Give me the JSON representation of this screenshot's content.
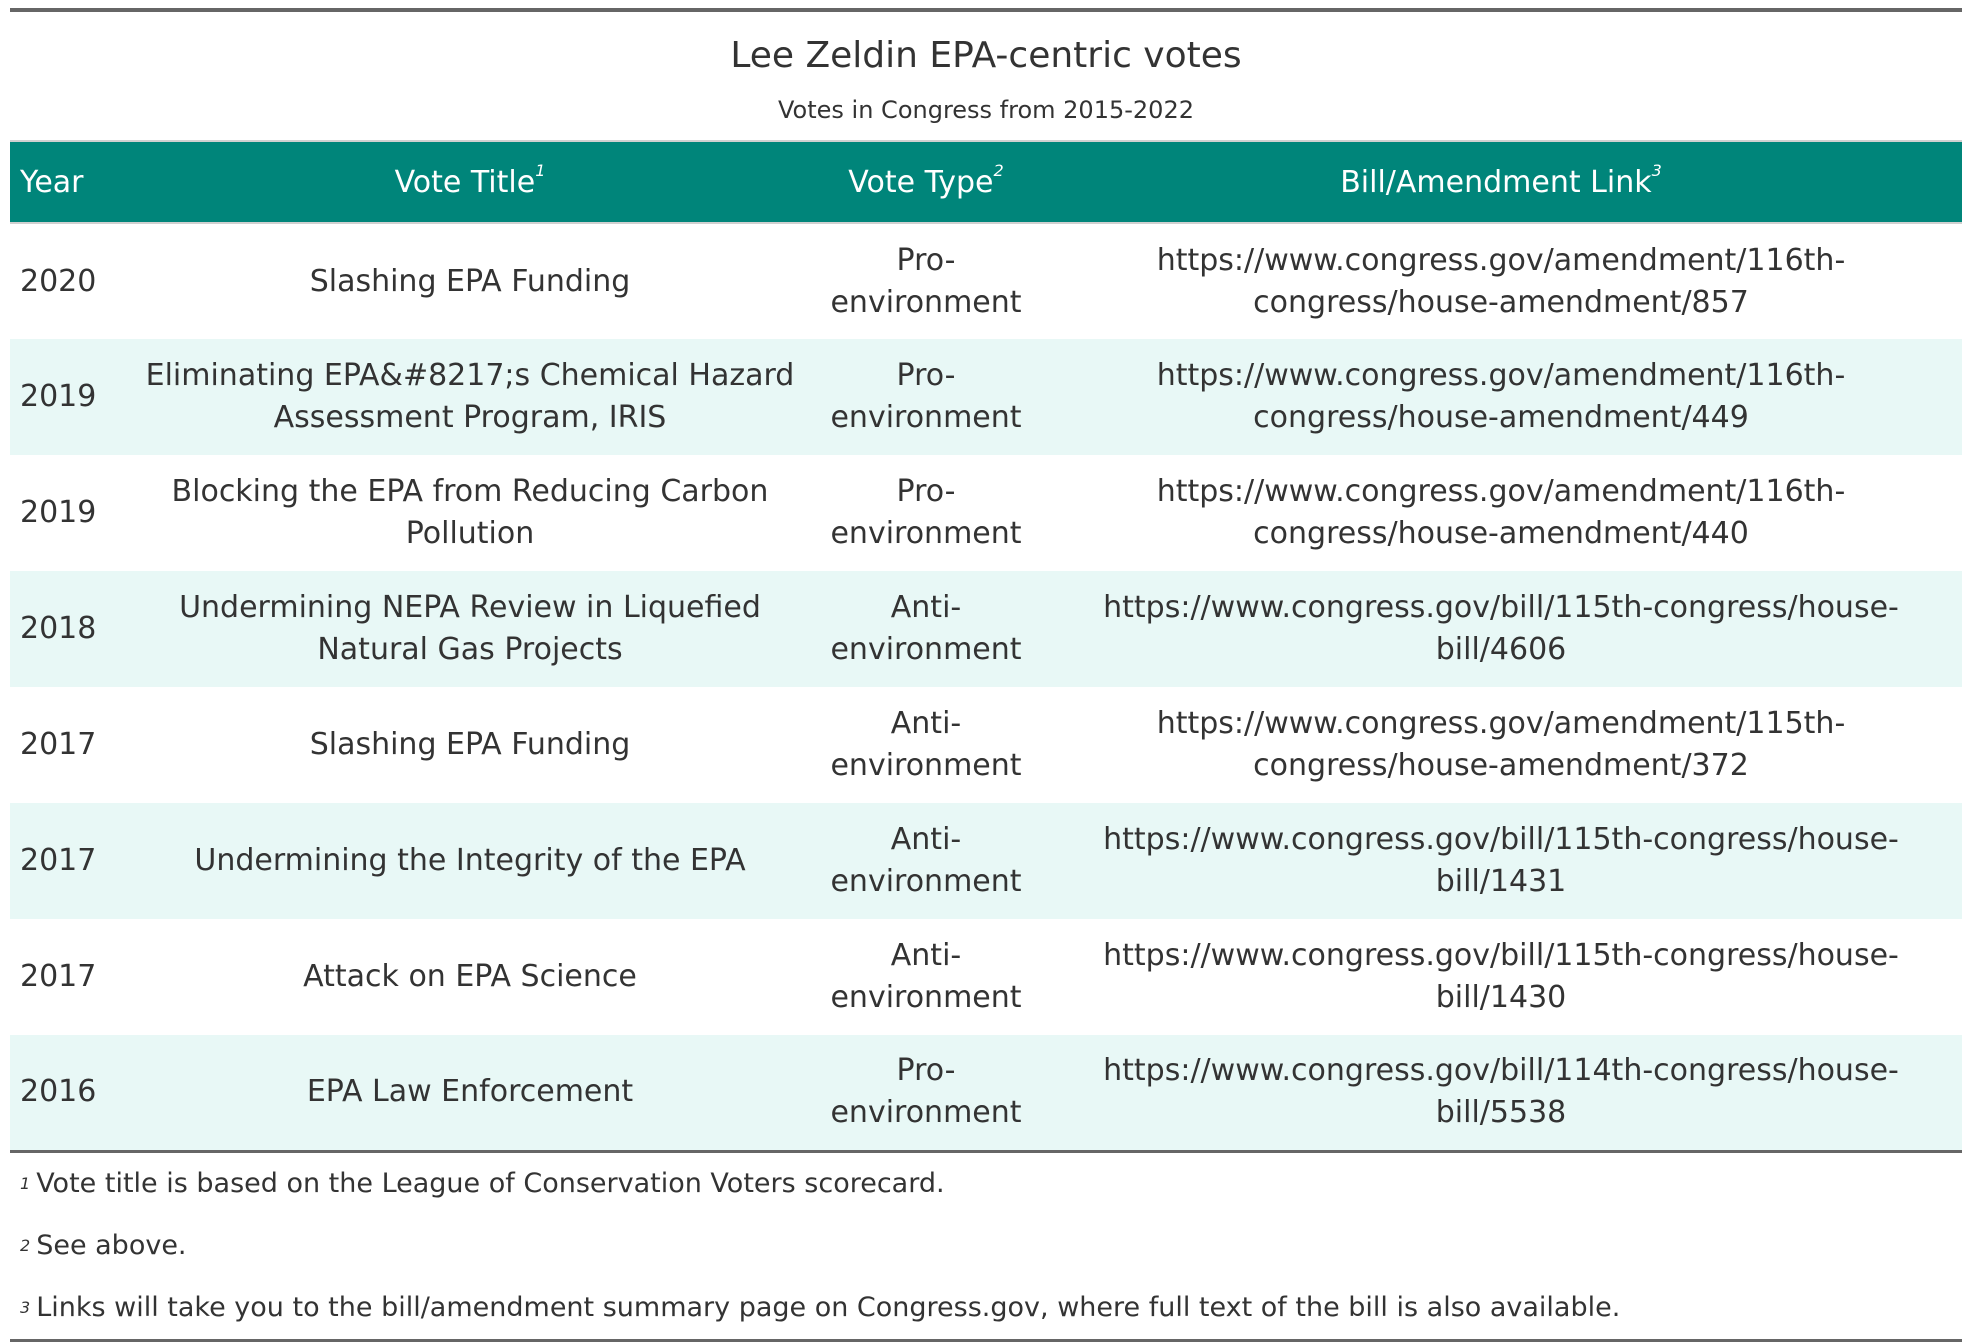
{
  "table": {
    "title": "Lee Zeldin EPA-centric votes",
    "subtitle": "Votes in Congress from 2015-2022",
    "columns": [
      {
        "label": "Year",
        "footnote": ""
      },
      {
        "label": "Vote Title",
        "footnote": "1"
      },
      {
        "label": "Vote Type",
        "footnote": "2"
      },
      {
        "label": "Bill/Amendment Link",
        "footnote": "3"
      }
    ],
    "rows": [
      {
        "year": "2020",
        "title": "Slashing EPA Funding",
        "type": "Pro-environment",
        "link": "https://www.congress.gov/amendment/116th-congress/house-amendment/857"
      },
      {
        "year": "2019",
        "title": "Eliminating EPA&#8217;s Chemical Hazard Assessment Program, IRIS",
        "type": "Pro-environment",
        "link": "https://www.congress.gov/amendment/116th-congress/house-amendment/449"
      },
      {
        "year": "2019",
        "title": "Blocking the EPA from Reducing Carbon Pollution",
        "type": "Pro-environment",
        "link": "https://www.congress.gov/amendment/116th-congress/house-amendment/440"
      },
      {
        "year": "2018",
        "title": "Undermining NEPA Review in Liquefied Natural Gas Projects",
        "type": "Anti-environment",
        "link": "https://www.congress.gov/bill/115th-congress/house-bill/4606"
      },
      {
        "year": "2017",
        "title": "Slashing EPA Funding",
        "type": "Anti-environment",
        "link": "https://www.congress.gov/amendment/115th-congress/house-amendment/372"
      },
      {
        "year": "2017",
        "title": "Undermining the Integrity of the EPA",
        "type": "Anti-environment",
        "link": "https://www.congress.gov/bill/115th-congress/house-bill/1431"
      },
      {
        "year": "2017",
        "title": "Attack on EPA Science",
        "type": "Anti-environment",
        "link": "https://www.congress.gov/bill/115th-congress/house-bill/1430"
      },
      {
        "year": "2016",
        "title": "EPA Law Enforcement",
        "type": "Pro-environment",
        "link": "https://www.congress.gov/bill/114th-congress/house-bill/5538"
      }
    ],
    "footnotes": [
      {
        "mark": "1",
        "text": "Vote title is based on the League of Conservation Voters scorecard."
      },
      {
        "mark": "2",
        "text": "See above."
      },
      {
        "mark": "3",
        "text": "Links will take you to the bill/amendment summary page on Congress.gov, where full text of the bill is also available."
      }
    ]
  },
  "colors": {
    "header_bg": "#00857a",
    "stripe_bg": "#e8f8f6",
    "rule": "#666666",
    "text": "#333333"
  }
}
